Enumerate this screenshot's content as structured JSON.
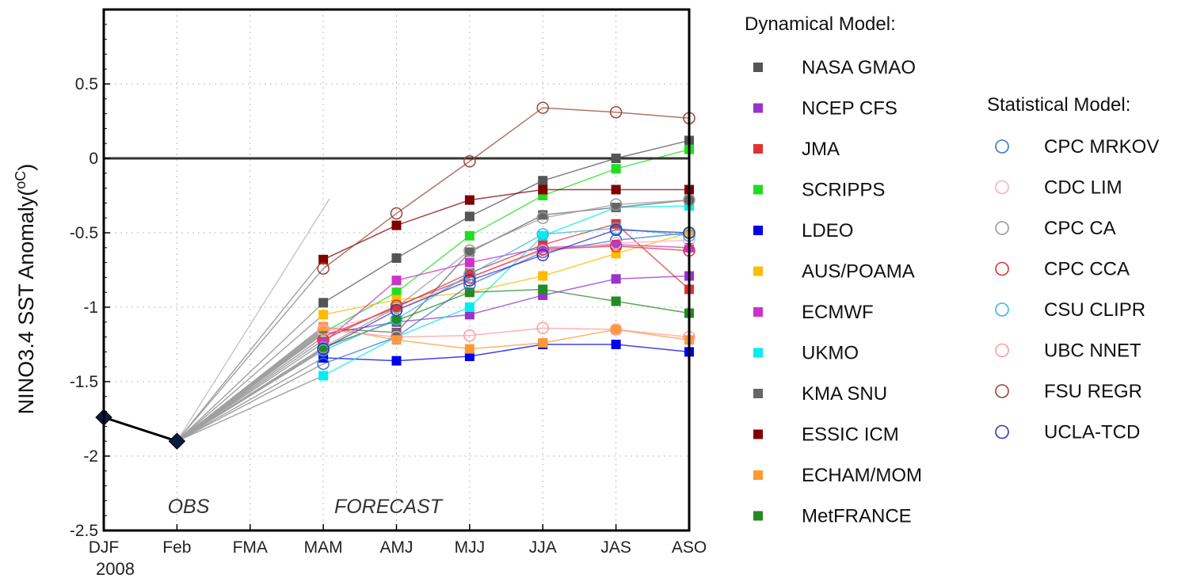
{
  "chart_data": {
    "type": "line",
    "ylabel": "NINO3.4 SST Anomaly(",
    "ylabel_unit": "oC",
    "ylabel_close": ")",
    "categories": [
      "DJF",
      "Feb",
      "FMA",
      "MAM",
      "AMJ",
      "MJJ",
      "JJA",
      "JAS",
      "ASO"
    ],
    "year_label": "2008",
    "ylim": [
      -2.5,
      1.0
    ],
    "yticks": [
      0.5,
      0,
      -0.5,
      -1,
      -1.5,
      -2,
      -2.5
    ],
    "ytick_labels": [
      "0.5",
      "0",
      "-0.5",
      "-1",
      "-1.5",
      "-2",
      "-2.5"
    ],
    "zero_line": true,
    "annotations": {
      "obs": "OBS",
      "forecast": "FORECAST"
    },
    "observed": {
      "x": [
        "DJF",
        "Feb"
      ],
      "values": [
        -1.74,
        -1.9
      ],
      "color": "#0d1a40"
    },
    "legend_titles": {
      "dynamical": "Dynamical Model:",
      "statistical": "Statistical Model:"
    },
    "dynamical_series": [
      {
        "name": "NASA GMAO",
        "color": "#555555",
        "values": [
          -0.97,
          -0.67,
          -0.39,
          -0.15,
          0.0,
          0.12
        ]
      },
      {
        "name": "NCEP CFS",
        "color": "#9933cc",
        "values": [
          -1.18,
          -1.1,
          -1.05,
          -0.92,
          -0.81,
          -0.79
        ]
      },
      {
        "name": "JMA",
        "color": "#dd3333",
        "values": [
          -1.2,
          -1.0,
          -0.77,
          -0.58,
          -0.44,
          -0.88
        ]
      },
      {
        "name": "SCRIPPS",
        "color": "#22dd22",
        "values": [
          -1.17,
          -0.9,
          -0.52,
          -0.25,
          -0.07,
          0.06
        ]
      },
      {
        "name": "LDEO",
        "color": "#0000ee",
        "values": [
          -1.34,
          -1.36,
          -1.33,
          -1.25,
          -1.25,
          -1.3
        ]
      },
      {
        "name": "AUS/POAMA",
        "color": "#ffbb00",
        "values": [
          -1.05,
          -0.95,
          -0.9,
          -0.79,
          -0.64,
          -0.5
        ]
      },
      {
        "name": "ECMWF",
        "color": "#cc33cc",
        "values": [
          -1.24,
          -0.82,
          -0.7,
          -0.6,
          -0.58,
          -0.6
        ]
      },
      {
        "name": "UKMO",
        "color": "#00eeee",
        "values": [
          -1.46,
          -1.2,
          -1.0,
          -0.52,
          -0.33,
          -0.32
        ]
      },
      {
        "name": "KMA SNU",
        "color": "#666666",
        "values": [
          -1.14,
          -1.17,
          -0.63,
          -0.38,
          -0.33,
          -0.28
        ]
      },
      {
        "name": "ESSIC ICM",
        "color": "#800000",
        "values": [
          -0.68,
          -0.45,
          -0.28,
          -0.21,
          -0.21,
          -0.21
        ]
      },
      {
        "name": "ECHAM/MOM",
        "color": "#ff9933",
        "values": [
          -1.13,
          -1.22,
          -1.28,
          -1.24,
          -1.15,
          -1.22
        ]
      },
      {
        "name": "MetFRANCE",
        "color": "#228b22",
        "values": [
          -1.27,
          -1.09,
          -0.9,
          -0.88,
          -0.96,
          -1.04
        ]
      }
    ],
    "statistical_series": [
      {
        "name": "CPC MRKOV",
        "color": "#3377cc",
        "values": [
          -1.38,
          -1.2,
          -0.85,
          -0.63,
          -0.55,
          -0.5
        ]
      },
      {
        "name": "CDC LIM",
        "color": "#ffaacc",
        "values": [
          -1.16,
          -1.02,
          -0.8,
          -0.62,
          -0.57,
          -0.55
        ]
      },
      {
        "name": "CPC CA",
        "color": "#999999",
        "values": [
          -1.27,
          -1.0,
          -0.62,
          -0.4,
          -0.31,
          -0.28
        ]
      },
      {
        "name": "CPC CCA",
        "color": "#dd3333",
        "values": [
          -1.22,
          -0.99,
          -0.8,
          -0.61,
          -0.59,
          -0.62
        ]
      },
      {
        "name": "CSU CLIPR",
        "color": "#33bbdd",
        "values": [
          -1.29,
          -1.08,
          -0.78,
          -0.51,
          -0.47,
          -0.52
        ]
      },
      {
        "name": "UBC NNET",
        "color": "#ff9999",
        "values": [
          -1.15,
          -1.2,
          -1.19,
          -1.14,
          -1.15,
          -1.2
        ]
      },
      {
        "name": "FSU REGR",
        "color": "#994433",
        "values": [
          -0.74,
          -0.37,
          -0.02,
          0.34,
          0.31,
          0.27
        ]
      },
      {
        "name": "UCLA-TCD",
        "color": "#3333bb",
        "values": [
          -1.28,
          -1.02,
          -0.82,
          -0.65,
          -0.48,
          -0.5
        ]
      }
    ]
  }
}
